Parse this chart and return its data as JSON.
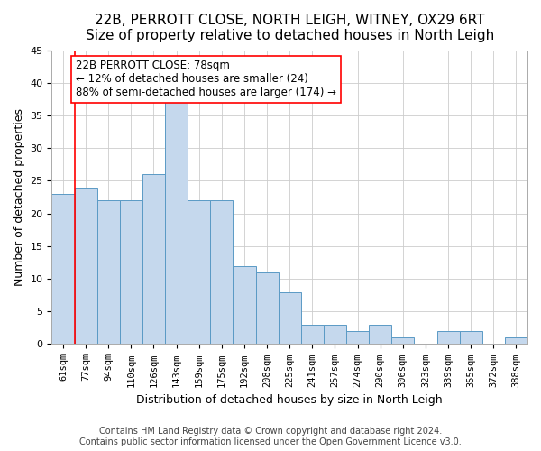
{
  "title": "22B, PERROTT CLOSE, NORTH LEIGH, WITNEY, OX29 6RT",
  "subtitle": "Size of property relative to detached houses in North Leigh",
  "xlabel": "Distribution of detached houses by size in North Leigh",
  "ylabel": "Number of detached properties",
  "categories": [
    "61sqm",
    "77sqm",
    "94sqm",
    "110sqm",
    "126sqm",
    "143sqm",
    "159sqm",
    "175sqm",
    "192sqm",
    "208sqm",
    "225sqm",
    "241sqm",
    "257sqm",
    "274sqm",
    "290sqm",
    "306sqm",
    "323sqm",
    "339sqm",
    "355sqm",
    "372sqm",
    "388sqm"
  ],
  "values": [
    23,
    24,
    22,
    22,
    26,
    37,
    22,
    22,
    12,
    11,
    8,
    3,
    3,
    2,
    3,
    1,
    0,
    2,
    2,
    0,
    1
  ],
  "bar_color": "#c5d8ed",
  "bar_edge_color": "#5a9ac5",
  "vline_x": 0.5,
  "annotation_text": "22B PERROTT CLOSE: 78sqm\n← 12% of detached houses are smaller (24)\n88% of semi-detached houses are larger (174) →",
  "annotation_box_color": "white",
  "annotation_box_edge_color": "red",
  "vline_color": "red",
  "ylim": [
    0,
    45
  ],
  "yticks": [
    0,
    5,
    10,
    15,
    20,
    25,
    30,
    35,
    40,
    45
  ],
  "footer_line1": "Contains HM Land Registry data © Crown copyright and database right 2024.",
  "footer_line2": "Contains public sector information licensed under the Open Government Licence v3.0.",
  "title_fontsize": 11,
  "tick_fontsize": 7.5,
  "ylabel_fontsize": 9,
  "xlabel_fontsize": 9,
  "footer_fontsize": 7,
  "annotation_fontsize": 8.5
}
